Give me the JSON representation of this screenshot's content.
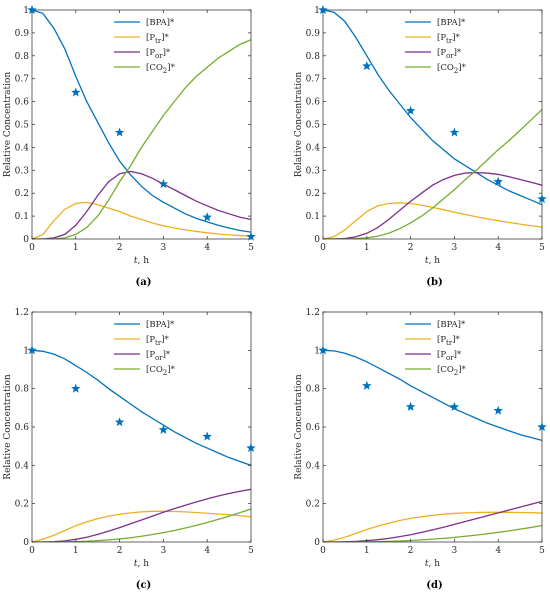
{
  "chart_data": [
    {
      "type": "line",
      "panel_label": "(a)",
      "xlabel_var": "t",
      "xlabel_unit": ", h",
      "ylabel": "Relative Concentration",
      "xlim": [
        0,
        5
      ],
      "ylim": [
        0,
        1
      ],
      "xticks": [
        0,
        1,
        2,
        3,
        4,
        5
      ],
      "yticks": [
        0,
        0.1,
        0.2,
        0.3,
        0.4,
        0.5,
        0.6,
        0.7,
        0.8,
        0.9,
        1
      ],
      "ytick_labels": [
        "0",
        "0.1",
        "0.2",
        "0.3",
        "0.4",
        "0.5",
        "0.6",
        "0.7",
        "0.8",
        "0.9",
        "1"
      ],
      "legend": "top-right",
      "series": [
        {
          "key": "bpa",
          "legend": {
            "base": "[BPA]",
            "sub": "",
            "suffix": "*"
          },
          "color": "#0072BD",
          "x": [
            0,
            0.25,
            0.5,
            0.75,
            1,
            1.25,
            1.5,
            1.75,
            2,
            2.25,
            2.5,
            2.75,
            3,
            3.25,
            3.5,
            3.75,
            4,
            4.25,
            4.5,
            4.75,
            5
          ],
          "values": [
            1,
            0.985,
            0.92,
            0.83,
            0.71,
            0.6,
            0.51,
            0.42,
            0.34,
            0.28,
            0.23,
            0.19,
            0.16,
            0.135,
            0.11,
            0.09,
            0.075,
            0.06,
            0.048,
            0.037,
            0.03
          ]
        },
        {
          "key": "ptr",
          "legend": {
            "base": "[P",
            "sub": "tr",
            "suffix": "]*"
          },
          "color": "#EDB120",
          "x": [
            0,
            0.25,
            0.5,
            0.75,
            1,
            1.25,
            1.5,
            1.75,
            2,
            2.25,
            2.5,
            2.75,
            3,
            3.25,
            3.5,
            3.75,
            4,
            4.25,
            4.5,
            4.75,
            5
          ],
          "values": [
            0,
            0.02,
            0.08,
            0.13,
            0.155,
            0.16,
            0.15,
            0.135,
            0.12,
            0.1,
            0.085,
            0.07,
            0.058,
            0.048,
            0.04,
            0.033,
            0.027,
            0.022,
            0.018,
            0.015,
            0.012
          ]
        },
        {
          "key": "por",
          "legend": {
            "base": "[P",
            "sub": "or",
            "suffix": "]*"
          },
          "color": "#7E2F8E",
          "x": [
            0,
            0.25,
            0.5,
            0.75,
            1,
            1.25,
            1.5,
            1.75,
            2,
            2.25,
            2.5,
            2.75,
            3,
            3.25,
            3.5,
            3.75,
            4,
            4.25,
            4.5,
            4.75,
            5
          ],
          "values": [
            0,
            0,
            0.005,
            0.02,
            0.06,
            0.12,
            0.19,
            0.25,
            0.285,
            0.295,
            0.285,
            0.265,
            0.24,
            0.215,
            0.19,
            0.165,
            0.145,
            0.125,
            0.11,
            0.095,
            0.085
          ]
        },
        {
          "key": "co2",
          "legend": {
            "base": "[CO",
            "sub": "2",
            "suffix": "]*"
          },
          "color": "#77AC30",
          "x": [
            0,
            0.25,
            0.5,
            0.75,
            1,
            1.25,
            1.5,
            1.75,
            2,
            2.25,
            2.5,
            2.75,
            3,
            3.25,
            3.5,
            3.75,
            4,
            4.25,
            4.5,
            4.75,
            5
          ],
          "values": [
            0,
            0,
            0,
            0.005,
            0.02,
            0.05,
            0.1,
            0.17,
            0.25,
            0.32,
            0.4,
            0.47,
            0.54,
            0.6,
            0.66,
            0.71,
            0.75,
            0.79,
            0.82,
            0.85,
            0.87
          ]
        }
      ],
      "markers": {
        "color": "#0072BD",
        "x": [
          0,
          1,
          2,
          3,
          4,
          5
        ],
        "values": [
          1,
          0.64,
          0.465,
          0.24,
          0.095,
          0.01
        ]
      }
    },
    {
      "type": "line",
      "panel_label": "(b)",
      "xlabel_var": "t",
      "xlabel_unit": ", h",
      "ylabel": "Relative Concentration",
      "xlim": [
        0,
        5
      ],
      "ylim": [
        0,
        1
      ],
      "xticks": [
        0,
        1,
        2,
        3,
        4,
        5
      ],
      "yticks": [
        0,
        0.1,
        0.2,
        0.3,
        0.4,
        0.5,
        0.6,
        0.7,
        0.8,
        0.9,
        1
      ],
      "ytick_labels": [
        "0",
        "0.1",
        "0.2",
        "0.3",
        "0.4",
        "0.5",
        "0.6",
        "0.7",
        "0.8",
        "0.9",
        "1"
      ],
      "legend": "top-right",
      "series": [
        {
          "key": "bpa",
          "legend": {
            "base": "[BPA]",
            "sub": "",
            "suffix": "*"
          },
          "color": "#0072BD",
          "x": [
            0,
            0.25,
            0.5,
            0.75,
            1,
            1.25,
            1.5,
            1.75,
            2,
            2.25,
            2.5,
            2.75,
            3,
            3.25,
            3.5,
            3.75,
            4,
            4.25,
            4.5,
            4.75,
            5
          ],
          "values": [
            1,
            0.99,
            0.95,
            0.88,
            0.8,
            0.72,
            0.65,
            0.59,
            0.53,
            0.48,
            0.43,
            0.39,
            0.35,
            0.32,
            0.29,
            0.26,
            0.235,
            0.21,
            0.19,
            0.17,
            0.15
          ]
        },
        {
          "key": "ptr",
          "legend": {
            "base": "[P",
            "sub": "tr",
            "suffix": "]*"
          },
          "color": "#EDB120",
          "x": [
            0,
            0.25,
            0.5,
            0.75,
            1,
            1.25,
            1.5,
            1.75,
            2,
            2.25,
            2.5,
            2.75,
            3,
            3.25,
            3.5,
            3.75,
            4,
            4.25,
            4.5,
            4.75,
            5
          ],
          "values": [
            0,
            0.01,
            0.04,
            0.08,
            0.12,
            0.145,
            0.155,
            0.158,
            0.155,
            0.148,
            0.138,
            0.128,
            0.117,
            0.107,
            0.097,
            0.088,
            0.08,
            0.072,
            0.065,
            0.058,
            0.052
          ]
        },
        {
          "key": "por",
          "legend": {
            "base": "[P",
            "sub": "or",
            "suffix": "]*"
          },
          "color": "#7E2F8E",
          "x": [
            0,
            0.25,
            0.5,
            0.75,
            1,
            1.25,
            1.5,
            1.75,
            2,
            2.25,
            2.5,
            2.75,
            3,
            3.25,
            3.5,
            3.75,
            4,
            4.25,
            4.5,
            4.75,
            5
          ],
          "values": [
            0,
            0,
            0.002,
            0.01,
            0.025,
            0.05,
            0.085,
            0.125,
            0.165,
            0.2,
            0.235,
            0.26,
            0.278,
            0.288,
            0.29,
            0.288,
            0.282,
            0.272,
            0.26,
            0.248,
            0.235
          ]
        },
        {
          "key": "co2",
          "legend": {
            "base": "[CO",
            "sub": "2",
            "suffix": "]*"
          },
          "color": "#77AC30",
          "x": [
            0,
            0.25,
            0.5,
            0.75,
            1,
            1.25,
            1.5,
            1.75,
            2,
            2.25,
            2.5,
            2.75,
            3,
            3.25,
            3.5,
            3.75,
            4,
            4.25,
            4.5,
            4.75,
            5
          ],
          "values": [
            0,
            0,
            0,
            0.002,
            0.005,
            0.012,
            0.025,
            0.045,
            0.07,
            0.1,
            0.135,
            0.175,
            0.215,
            0.26,
            0.3,
            0.345,
            0.39,
            0.43,
            0.475,
            0.52,
            0.565
          ]
        }
      ],
      "markers": {
        "color": "#0072BD",
        "x": [
          0,
          1,
          2,
          3,
          4,
          5
        ],
        "values": [
          1,
          0.755,
          0.56,
          0.465,
          0.25,
          0.175
        ]
      }
    },
    {
      "type": "line",
      "panel_label": "(c)",
      "xlabel_var": "t",
      "xlabel_unit": ", h",
      "ylabel": "Relative Concentration",
      "xlim": [
        0,
        5
      ],
      "ylim": [
        0,
        1.2
      ],
      "xticks": [
        0,
        1,
        2,
        3,
        4,
        5
      ],
      "yticks": [
        0,
        0.2,
        0.4,
        0.6,
        0.8,
        1,
        1.2
      ],
      "ytick_labels": [
        "0",
        "0.2",
        "0.4",
        "0.6",
        "0.8",
        "1",
        "1.2"
      ],
      "legend": "top-right",
      "series": [
        {
          "key": "bpa",
          "legend": {
            "base": "[BPA]",
            "sub": "",
            "suffix": "*"
          },
          "color": "#0072BD",
          "x": [
            0,
            0.25,
            0.5,
            0.75,
            1,
            1.25,
            1.5,
            1.75,
            2,
            2.25,
            2.5,
            2.75,
            3,
            3.25,
            3.5,
            3.75,
            4,
            4.25,
            4.5,
            4.75,
            5
          ],
          "values": [
            1,
            0.995,
            0.98,
            0.955,
            0.92,
            0.885,
            0.845,
            0.8,
            0.76,
            0.72,
            0.68,
            0.645,
            0.61,
            0.575,
            0.545,
            0.515,
            0.49,
            0.465,
            0.44,
            0.42,
            0.4
          ]
        },
        {
          "key": "ptr",
          "legend": {
            "base": "[P",
            "sub": "tr",
            "suffix": "]*"
          },
          "color": "#EDB120",
          "x": [
            0,
            0.25,
            0.5,
            0.75,
            1,
            1.25,
            1.5,
            1.75,
            2,
            2.25,
            2.5,
            2.75,
            3,
            3.25,
            3.5,
            3.75,
            4,
            4.25,
            4.5,
            4.75,
            5
          ],
          "values": [
            0,
            0.015,
            0.035,
            0.06,
            0.085,
            0.105,
            0.122,
            0.135,
            0.145,
            0.152,
            0.157,
            0.16,
            0.16,
            0.159,
            0.157,
            0.154,
            0.15,
            0.146,
            0.142,
            0.137,
            0.132
          ]
        },
        {
          "key": "por",
          "legend": {
            "base": "[P",
            "sub": "or",
            "suffix": "]*"
          },
          "color": "#7E2F8E",
          "x": [
            0,
            0.25,
            0.5,
            0.75,
            1,
            1.25,
            1.5,
            1.75,
            2,
            2.25,
            2.5,
            2.75,
            3,
            3.25,
            3.5,
            3.75,
            4,
            4.25,
            4.5,
            4.75,
            5
          ],
          "values": [
            0,
            0,
            0.002,
            0.006,
            0.014,
            0.025,
            0.04,
            0.057,
            0.075,
            0.095,
            0.115,
            0.135,
            0.155,
            0.174,
            0.192,
            0.209,
            0.225,
            0.24,
            0.253,
            0.265,
            0.275
          ]
        },
        {
          "key": "co2",
          "legend": {
            "base": "[CO",
            "sub": "2",
            "suffix": "]*"
          },
          "color": "#77AC30",
          "x": [
            0,
            0.25,
            0.5,
            0.75,
            1,
            1.25,
            1.5,
            1.75,
            2,
            2.25,
            2.5,
            2.75,
            3,
            3.25,
            3.5,
            3.75,
            4,
            4.25,
            4.5,
            4.75,
            5
          ],
          "values": [
            0,
            0,
            0,
            0.001,
            0.002,
            0.004,
            0.007,
            0.011,
            0.016,
            0.022,
            0.03,
            0.039,
            0.049,
            0.06,
            0.073,
            0.087,
            0.102,
            0.118,
            0.135,
            0.153,
            0.172
          ]
        }
      ],
      "markers": {
        "color": "#0072BD",
        "x": [
          0,
          1,
          2,
          3,
          4,
          5
        ],
        "values": [
          1,
          0.8,
          0.625,
          0.585,
          0.55,
          0.49
        ]
      }
    },
    {
      "type": "line",
      "panel_label": "(d)",
      "xlabel_var": "t",
      "xlabel_unit": ", h",
      "ylabel": "Relative Concentration",
      "xlim": [
        0,
        5
      ],
      "ylim": [
        0,
        1.2
      ],
      "xticks": [
        0,
        1,
        2,
        3,
        4,
        5
      ],
      "yticks": [
        0,
        0.2,
        0.4,
        0.6,
        0.8,
        1,
        1.2
      ],
      "ytick_labels": [
        "0",
        "0.2",
        "0.4",
        "0.6",
        "0.8",
        "1",
        "1.2"
      ],
      "legend": "top-right",
      "series": [
        {
          "key": "bpa",
          "legend": {
            "base": "[BPA]",
            "sub": "",
            "suffix": "*"
          },
          "color": "#0072BD",
          "x": [
            0,
            0.25,
            0.5,
            0.75,
            1,
            1.25,
            1.5,
            1.75,
            2,
            2.25,
            2.5,
            2.75,
            3,
            3.25,
            3.5,
            3.75,
            4,
            4.25,
            4.5,
            4.75,
            5
          ],
          "values": [
            1,
            0.997,
            0.985,
            0.965,
            0.94,
            0.91,
            0.88,
            0.85,
            0.815,
            0.785,
            0.755,
            0.725,
            0.695,
            0.67,
            0.645,
            0.62,
            0.6,
            0.58,
            0.56,
            0.545,
            0.53
          ]
        },
        {
          "key": "ptr",
          "legend": {
            "base": "[P",
            "sub": "tr",
            "suffix": "]*"
          },
          "color": "#EDB120",
          "x": [
            0,
            0.25,
            0.5,
            0.75,
            1,
            1.25,
            1.5,
            1.75,
            2,
            2.25,
            2.5,
            2.75,
            3,
            3.25,
            3.5,
            3.75,
            4,
            4.25,
            4.5,
            4.75,
            5
          ],
          "values": [
            0,
            0.01,
            0.025,
            0.045,
            0.065,
            0.083,
            0.098,
            0.112,
            0.123,
            0.132,
            0.139,
            0.145,
            0.149,
            0.152,
            0.154,
            0.155,
            0.155,
            0.155,
            0.154,
            0.153,
            0.151
          ]
        },
        {
          "key": "por",
          "legend": {
            "base": "[P",
            "sub": "or",
            "suffix": "]*"
          },
          "color": "#7E2F8E",
          "x": [
            0,
            0.25,
            0.5,
            0.75,
            1,
            1.25,
            1.5,
            1.75,
            2,
            2.25,
            2.5,
            2.75,
            3,
            3.25,
            3.5,
            3.75,
            4,
            4.25,
            4.5,
            4.75,
            5
          ],
          "values": [
            0,
            0,
            0.001,
            0.003,
            0.007,
            0.012,
            0.019,
            0.028,
            0.038,
            0.05,
            0.063,
            0.077,
            0.092,
            0.107,
            0.122,
            0.137,
            0.152,
            0.167,
            0.182,
            0.197,
            0.212
          ]
        },
        {
          "key": "co2",
          "legend": {
            "base": "[CO",
            "sub": "2",
            "suffix": "]*"
          },
          "color": "#77AC30",
          "x": [
            0,
            0.25,
            0.5,
            0.75,
            1,
            1.25,
            1.5,
            1.75,
            2,
            2.25,
            2.5,
            2.75,
            3,
            3.25,
            3.5,
            3.75,
            4,
            4.25,
            4.5,
            4.75,
            5
          ],
          "values": [
            0,
            0,
            0,
            0,
            0.001,
            0.002,
            0.003,
            0.005,
            0.008,
            0.011,
            0.015,
            0.019,
            0.024,
            0.03,
            0.036,
            0.043,
            0.05,
            0.058,
            0.067,
            0.076,
            0.086
          ]
        }
      ],
      "markers": {
        "color": "#0072BD",
        "x": [
          0,
          1,
          2,
          3,
          4,
          5
        ],
        "values": [
          1,
          0.815,
          0.705,
          0.705,
          0.685,
          0.6
        ]
      }
    }
  ]
}
